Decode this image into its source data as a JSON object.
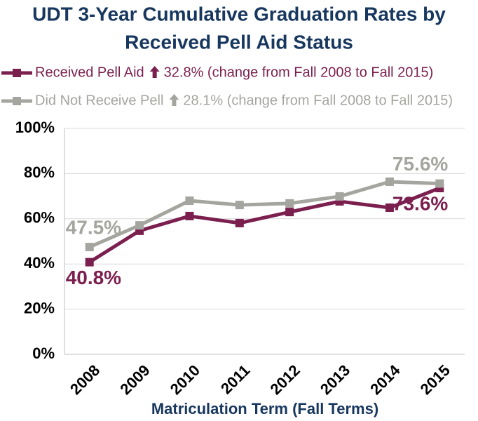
{
  "chart_data": {
    "type": "line",
    "title": [
      "UDT 3-Year Cumulative Graduation Rates by",
      "Received Pell Aid Status"
    ],
    "x_label": "Matriculation Term (Fall Terms)",
    "categories": [
      "2008",
      "2009",
      "2010",
      "2011",
      "2012",
      "2013",
      "2014",
      "2015"
    ],
    "series": [
      {
        "name": "Received Pell Aid",
        "annotation": "32.8% (change from Fall 2008 to Fall 2015)",
        "color": "#7b1f4f",
        "values": [
          40.8,
          54.7,
          61.2,
          58.1,
          63.0,
          67.7,
          64.9,
          73.6
        ],
        "value_labels": [
          "40.8%",
          null,
          null,
          null,
          null,
          null,
          null,
          "73.6%"
        ]
      },
      {
        "name": "Did Not Receive Pell",
        "annotation": "28.1% (change from Fall 2008 to Fall 2015)",
        "color": "#a5a59f",
        "values": [
          47.5,
          57.1,
          68.0,
          66.1,
          66.8,
          69.9,
          76.4,
          75.6
        ],
        "value_labels": [
          "47.5%",
          null,
          null,
          null,
          null,
          null,
          null,
          "75.6%"
        ]
      }
    ],
    "ylim": [
      0,
      100
    ],
    "yticks": [
      {
        "value": 0,
        "label": "0%"
      },
      {
        "value": 20,
        "label": "20%"
      },
      {
        "value": 40,
        "label": "40%"
      },
      {
        "value": 60,
        "label": "60%"
      },
      {
        "value": 80,
        "label": "80%"
      },
      {
        "value": 100,
        "label": "100%"
      }
    ],
    "grid": true
  }
}
